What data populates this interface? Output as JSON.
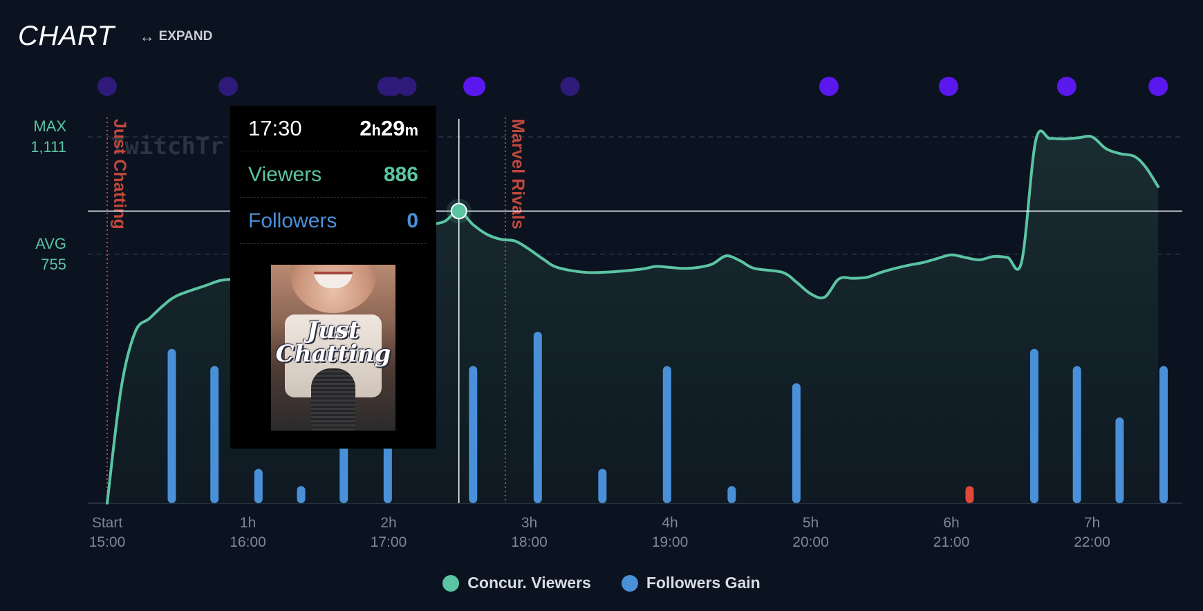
{
  "header": {
    "title": "CHART",
    "expand_label": "EXPAND"
  },
  "stats": {
    "max_label": "MAX",
    "max_value": "1,111",
    "avg_label": "AVG",
    "avg_value": "755"
  },
  "watermark": "TwitchTr",
  "tooltip": {
    "time": "17:30",
    "duration_hours": "2",
    "duration_h_unit": "h",
    "duration_minutes": "29",
    "duration_m_unit": "m",
    "viewers_label": "Viewers",
    "viewers_value": "886",
    "followers_label": "Followers",
    "followers_value": "0",
    "cover_text_line1": "Just",
    "cover_text_line2": "Chatting"
  },
  "legend": [
    {
      "label": "Concur. Viewers",
      "color": "#5bc4a2"
    },
    {
      "label": "Followers Gain",
      "color": "#4a90d9"
    }
  ],
  "colors": {
    "viewers": "#5bc4a2",
    "followers": "#4a90d9",
    "loss": "#e0483a",
    "category_marker": "#c0483c",
    "event_bright": "#5a18ee",
    "event_dim": "#2e1a78"
  },
  "chart_data": {
    "type": "line",
    "x_unit": "hours since stream start",
    "x_ticks": [
      {
        "x": 0,
        "top": "Start",
        "bottom": "15:00"
      },
      {
        "x": 1,
        "top": "1h",
        "bottom": "16:00"
      },
      {
        "x": 2,
        "top": "2h",
        "bottom": "17:00"
      },
      {
        "x": 3,
        "top": "3h",
        "bottom": "18:00"
      },
      {
        "x": 4,
        "top": "4h",
        "bottom": "19:00"
      },
      {
        "x": 5,
        "top": "5h",
        "bottom": "20:00"
      },
      {
        "x": 6,
        "top": "6h",
        "bottom": "21:00"
      },
      {
        "x": 7,
        "top": "7h",
        "bottom": "22:00"
      }
    ],
    "xlim": [
      0,
      7.5
    ],
    "viewers_ylim": [
      0,
      1111
    ],
    "max_line": 1111,
    "avg_line": 755,
    "crosshair": {
      "x": 2.5,
      "y": 886
    },
    "series": [
      {
        "name": "Concur. Viewers",
        "points": [
          [
            0,
            0
          ],
          [
            0.1,
            350
          ],
          [
            0.2,
            520
          ],
          [
            0.3,
            560
          ],
          [
            0.4,
            600
          ],
          [
            0.5,
            630
          ],
          [
            0.7,
            660
          ],
          [
            0.8,
            675
          ],
          [
            0.9,
            680
          ],
          [
            1.0,
            685
          ],
          [
            2.1,
            830
          ],
          [
            2.2,
            840
          ],
          [
            2.3,
            845
          ],
          [
            2.4,
            855
          ],
          [
            2.5,
            886
          ],
          [
            2.6,
            845
          ],
          [
            2.7,
            815
          ],
          [
            2.8,
            800
          ],
          [
            2.9,
            795
          ],
          [
            3.0,
            770
          ],
          [
            3.1,
            740
          ],
          [
            3.2,
            715
          ],
          [
            3.4,
            700
          ],
          [
            3.6,
            702
          ],
          [
            3.8,
            710
          ],
          [
            3.9,
            718
          ],
          [
            4.0,
            715
          ],
          [
            4.1,
            712
          ],
          [
            4.2,
            715
          ],
          [
            4.3,
            725
          ],
          [
            4.4,
            750
          ],
          [
            4.5,
            735
          ],
          [
            4.6,
            712
          ],
          [
            4.8,
            700
          ],
          [
            4.9,
            670
          ],
          [
            5.0,
            635
          ],
          [
            5.1,
            625
          ],
          [
            5.2,
            680
          ],
          [
            5.3,
            682
          ],
          [
            5.4,
            685
          ],
          [
            5.5,
            700
          ],
          [
            5.6,
            712
          ],
          [
            5.7,
            722
          ],
          [
            5.8,
            730
          ],
          [
            5.9,
            742
          ],
          [
            6.0,
            753
          ],
          [
            6.1,
            745
          ],
          [
            6.2,
            738
          ],
          [
            6.3,
            748
          ],
          [
            6.4,
            745
          ],
          [
            6.5,
            733
          ],
          [
            6.6,
            1100
          ],
          [
            6.7,
            1106
          ],
          [
            6.8,
            1105
          ],
          [
            6.9,
            1108
          ],
          [
            7.0,
            1111
          ],
          [
            7.1,
            1075
          ],
          [
            7.2,
            1060
          ],
          [
            7.3,
            1052
          ],
          [
            7.38,
            1020
          ],
          [
            7.47,
            960
          ]
        ]
      },
      {
        "name": "Followers Gain",
        "type": "bar",
        "ylim": [
          0,
          10
        ],
        "bars": [
          [
            0.5,
            9
          ],
          [
            0.83,
            8
          ],
          [
            1.17,
            2
          ],
          [
            1.5,
            1
          ],
          [
            1.83,
            5
          ],
          [
            2.17,
            6
          ],
          [
            2.83,
            8
          ],
          [
            3.33,
            10
          ],
          [
            3.83,
            2
          ],
          [
            4.33,
            8
          ],
          [
            4.83,
            1
          ],
          [
            5.33,
            7
          ],
          [
            7.17,
            9
          ],
          [
            7.5,
            8
          ],
          [
            7.83,
            5
          ],
          [
            8.17,
            8
          ]
        ],
        "negative_bars": [
          [
            6.67,
            1
          ]
        ]
      }
    ],
    "categories": [
      {
        "x": 0,
        "label": "Just Chatting"
      },
      {
        "x": 2.83,
        "label": "Marvel Rivals"
      }
    ],
    "events": [
      {
        "x": 0,
        "bright": false
      },
      {
        "x": 0.86,
        "bright": false
      },
      {
        "x": 1.99,
        "bright": false
      },
      {
        "x": 2.03,
        "bright": false
      },
      {
        "x": 2.13,
        "bright": false
      },
      {
        "x": 2.6,
        "bright": true
      },
      {
        "x": 2.62,
        "bright": true
      },
      {
        "x": 3.29,
        "bright": false
      },
      {
        "x": 5.13,
        "bright": true
      },
      {
        "x": 5.98,
        "bright": true
      },
      {
        "x": 6.82,
        "bright": true
      },
      {
        "x": 7.47,
        "bright": true
      }
    ]
  }
}
